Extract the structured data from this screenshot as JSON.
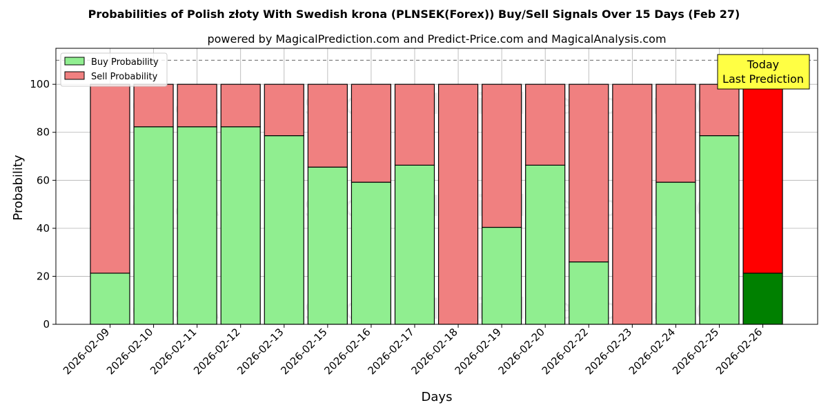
{
  "chart_data": {
    "type": "bar",
    "stacked": true,
    "title": "Probabilities of Polish złoty With Swedish krona (PLNSEK(Forex)) Buy/Sell Signals Over 15 Days (Feb 27)",
    "subtitle": "powered by MagicalPrediction.com and Predict-Price.com and MagicalAnalysis.com",
    "xlabel": "Days",
    "ylabel": "Probability",
    "ylim": [
      0,
      115
    ],
    "yticks": [
      0,
      20,
      40,
      60,
      80,
      100
    ],
    "grid": true,
    "legend_position": "top-left",
    "reference_line": 110,
    "categories": [
      "2026-02-09",
      "2026-02-10",
      "2026-02-11",
      "2026-02-12",
      "2026-02-13",
      "2026-02-15",
      "2026-02-16",
      "2026-02-17",
      "2026-02-18",
      "2026-02-19",
      "2026-02-20",
      "2026-02-22",
      "2026-02-23",
      "2026-02-24",
      "2026-02-25",
      "2026-02-26"
    ],
    "series": [
      {
        "name": "Buy Probability",
        "color": "#90ee90",
        "highlight_color": "#008000",
        "values": [
          21.3,
          82.3,
          82.3,
          82.3,
          78.6,
          65.5,
          59.2,
          66.3,
          0,
          40.4,
          66.3,
          26,
          0,
          59.2,
          78.6,
          21.3
        ]
      },
      {
        "name": "Sell Probability",
        "color": "#f08080",
        "highlight_color": "#ff0000",
        "values": [
          78.7,
          17.7,
          17.7,
          17.7,
          21.4,
          34.5,
          40.8,
          33.7,
          100,
          59.6,
          33.7,
          74,
          100,
          40.8,
          21.4,
          78.7
        ]
      }
    ],
    "highlight_index": 15,
    "annotation": {
      "line1": "Today",
      "line2": "Last Prediction",
      "color": "#ffff44"
    },
    "watermarks": [
      "MagicalAnalysis.com",
      "MagicalPrediction.com"
    ]
  }
}
